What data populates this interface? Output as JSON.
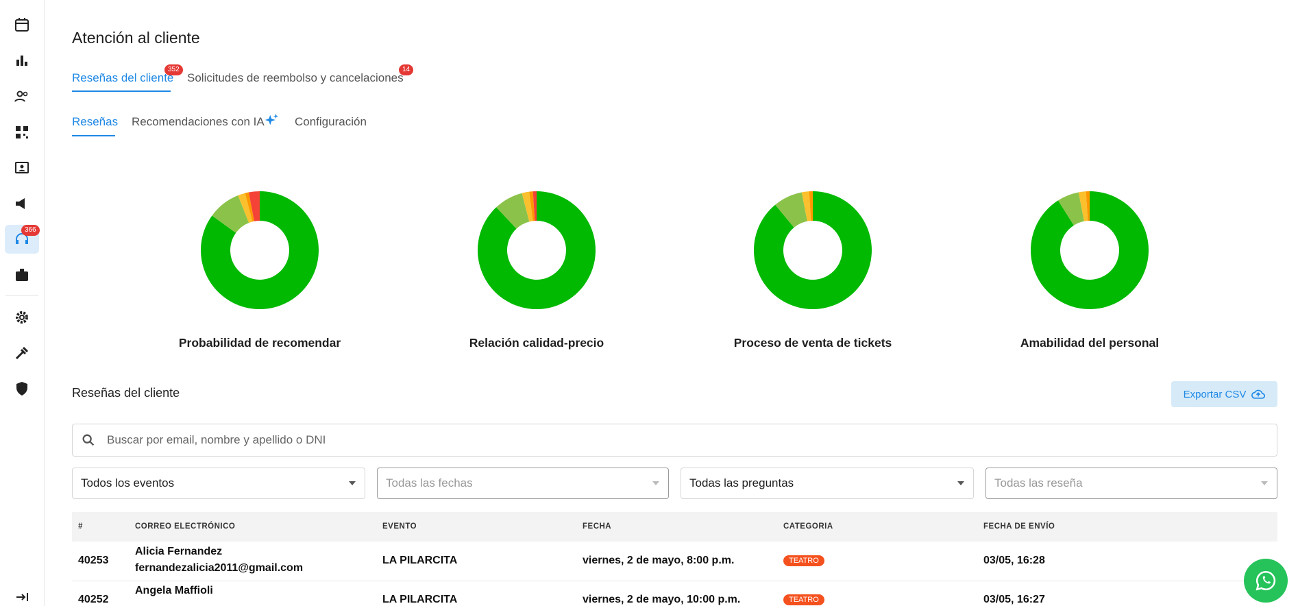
{
  "sidebar": {
    "badge": "366"
  },
  "header": {
    "title": "Atención al cliente"
  },
  "tabs": [
    {
      "label": "Reseñas del cliente",
      "badge": "352"
    },
    {
      "label": "Solicitudes de reembolso y cancelaciones",
      "badge": "14"
    }
  ],
  "subtabs": [
    "Reseñas",
    "Recomendaciones con IA",
    "Configuración"
  ],
  "chart_data": [
    {
      "type": "donut",
      "title": "Probabilidad de recomendar",
      "values": [
        85,
        9,
        2,
        1,
        3
      ],
      "colors": [
        "#00b900",
        "#8bc34a",
        "#fbc02d",
        "#ff9800",
        "#f44336"
      ]
    },
    {
      "type": "donut",
      "title": "Relación calidad-precio",
      "values": [
        88,
        8,
        2,
        1,
        1
      ],
      "colors": [
        "#00b900",
        "#8bc34a",
        "#fbc02d",
        "#ff9800",
        "#f44336"
      ]
    },
    {
      "type": "donut",
      "title": "Proceso de venta de tickets",
      "values": [
        89,
        8,
        2,
        1
      ],
      "colors": [
        "#00b900",
        "#8bc34a",
        "#fbc02d",
        "#ff9800"
      ]
    },
    {
      "type": "donut",
      "title": "Amabilidad del personal",
      "values": [
        91,
        6,
        2,
        1
      ],
      "colors": [
        "#00b900",
        "#8bc34a",
        "#fbc02d",
        "#ff9800"
      ]
    }
  ],
  "section": {
    "title": "Reseñas del cliente",
    "export_button": "Exportar CSV"
  },
  "search": {
    "placeholder": "Buscar por email, nombre y apellido o DNI"
  },
  "filters": [
    "Todos los eventos",
    "Todas las fechas",
    "Todas las preguntas",
    "Todas las reseña"
  ],
  "table": {
    "columns": [
      "#",
      "CORREO ELECTRÓNICO",
      "EVENTO",
      "FECHA",
      "CATEGORIA",
      "FECHA DE ENVÍO"
    ],
    "rows": [
      {
        "id": "40253",
        "name": "Alicia Fernandez",
        "email": "fernandezalicia2011@gmail.com",
        "event": "LA PILARCITA",
        "date": "viernes, 2 de mayo, 8:00 p.m.",
        "category": "TEATRO",
        "sent": "03/05, 16:28"
      },
      {
        "id": "40252",
        "name": "Angela Maffioli",
        "event": "LA PILARCITA",
        "date": "viernes, 2 de mayo, 10:00 p.m.",
        "category": "TEATRO",
        "sent": "03/05, 16:27"
      }
    ]
  }
}
